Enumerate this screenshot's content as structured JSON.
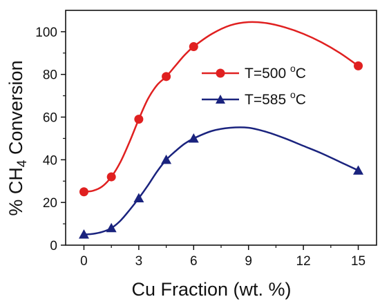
{
  "chart_data": {
    "type": "line",
    "title": "",
    "xlabel": "Cu Fraction (wt. %)",
    "ylabel_prefix": "% CH",
    "ylabel_sub": "4",
    "ylabel_suffix": " Conversion",
    "xlim": [
      -1,
      16
    ],
    "ylim": [
      0,
      110
    ],
    "xticks": [
      0,
      3,
      6,
      9,
      12,
      15
    ],
    "yticks": [
      0,
      20,
      40,
      60,
      80,
      100
    ],
    "grid": false,
    "legend_position": "center-right",
    "series": [
      {
        "name_prefix": "T=500 ",
        "name_sup": "o",
        "name_suffix": "C",
        "marker": "circle",
        "color": "#e02020",
        "x": [
          0,
          1.5,
          3,
          4.5,
          6,
          15
        ],
        "y": [
          25,
          32,
          59,
          79,
          93,
          84
        ],
        "curve": [
          [
            0,
            25
          ],
          [
            0.5,
            25.5
          ],
          [
            1,
            27.5
          ],
          [
            1.5,
            32
          ],
          [
            2,
            39
          ],
          [
            2.5,
            48.5
          ],
          [
            3,
            59
          ],
          [
            3.5,
            68.5
          ],
          [
            4,
            75
          ],
          [
            4.5,
            79
          ],
          [
            5,
            84
          ],
          [
            5.5,
            89
          ],
          [
            6,
            93
          ],
          [
            7,
            99
          ],
          [
            8,
            103
          ],
          [
            9,
            104.5
          ],
          [
            10,
            104
          ],
          [
            11,
            102
          ],
          [
            12,
            99
          ],
          [
            13,
            95
          ],
          [
            14,
            90
          ],
          [
            15,
            84
          ]
        ]
      },
      {
        "name_prefix": "T=585 ",
        "name_sup": "o",
        "name_suffix": "C",
        "marker": "triangle",
        "color": "#1a237e",
        "x": [
          0,
          1.5,
          3,
          4.5,
          6,
          15
        ],
        "y": [
          5,
          8,
          22,
          40,
          50,
          35
        ],
        "curve": [
          [
            0,
            5
          ],
          [
            0.5,
            5.3
          ],
          [
            1,
            6.2
          ],
          [
            1.5,
            8
          ],
          [
            2,
            11.5
          ],
          [
            2.5,
            16.5
          ],
          [
            3,
            22
          ],
          [
            3.5,
            28
          ],
          [
            4,
            34.5
          ],
          [
            4.5,
            40
          ],
          [
            5,
            44
          ],
          [
            5.5,
            47.5
          ],
          [
            6,
            50
          ],
          [
            7,
            53.5
          ],
          [
            8,
            55
          ],
          [
            9,
            55
          ],
          [
            10,
            53
          ],
          [
            11,
            50
          ],
          [
            12,
            46.5
          ],
          [
            13,
            43
          ],
          [
            14,
            39
          ],
          [
            15,
            35
          ]
        ]
      }
    ]
  }
}
